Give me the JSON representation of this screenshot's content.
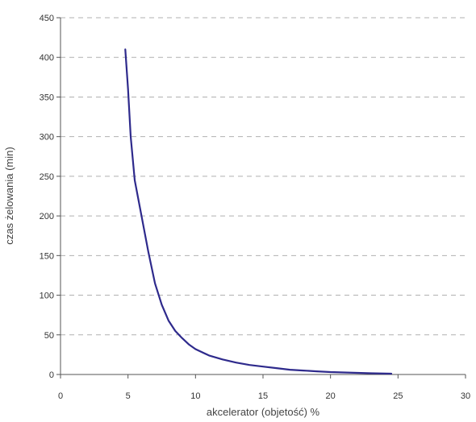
{
  "chart_data": {
    "type": "line",
    "title": "",
    "xlabel": "akcelerator (objetość) %",
    "ylabel": "czas żelowania (min)",
    "xlim": [
      0,
      30
    ],
    "ylim": [
      0,
      450
    ],
    "x_ticks": [
      0,
      5,
      10,
      15,
      20,
      25,
      30
    ],
    "y_ticks": [
      0,
      50,
      100,
      150,
      200,
      250,
      300,
      350,
      400,
      450
    ],
    "grid": "horizontal-dashed",
    "legend": "none",
    "series": [
      {
        "color": "#2e2a8c",
        "x": [
          4.8,
          5.0,
          5.2,
          5.5,
          6.0,
          6.5,
          7.0,
          7.5,
          8.0,
          8.5,
          9.0,
          9.5,
          10.0,
          11.0,
          12.0,
          13.0,
          14.0,
          15.0,
          16.0,
          17.0,
          18.0,
          19.0,
          20.0,
          21.0,
          22.0,
          23.0,
          24.5
        ],
        "y": [
          410,
          360,
          300,
          245,
          200,
          155,
          115,
          88,
          68,
          55,
          46,
          38,
          32,
          24,
          19,
          15,
          12,
          10,
          8,
          6,
          5,
          4,
          3,
          2.5,
          2,
          1.5,
          1
        ]
      }
    ]
  }
}
